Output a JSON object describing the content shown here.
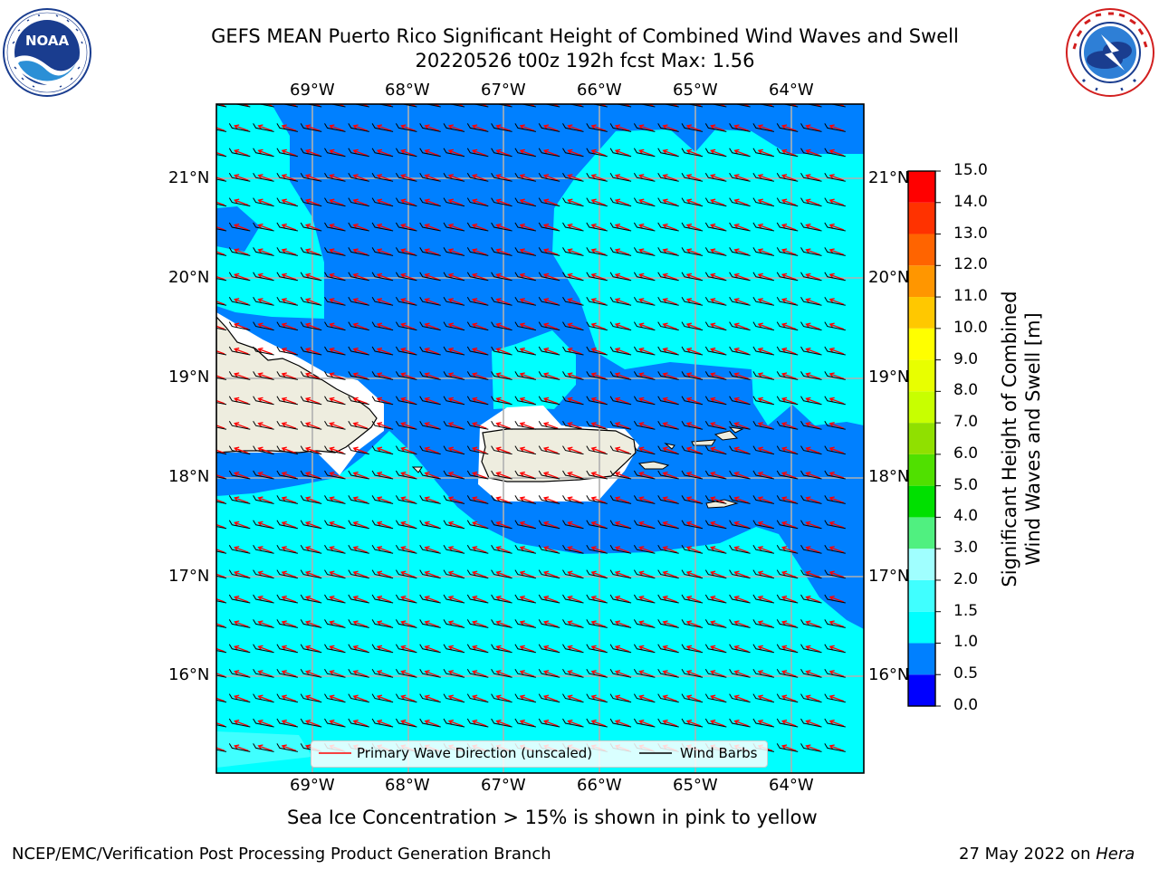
{
  "header": {
    "title_line1": "GEFS MEAN Puerto Rico Significant Height of Combined Wind Waves and Swell",
    "title_line2": "20220526 t00z 192h fcst   Max: 1.56"
  },
  "logos": {
    "left": {
      "icon": "noaa-logo-icon",
      "text": "NOAA",
      "ring_text": "NATIONAL OCEANIC AND ATMOSPHERIC ADMINISTRATION · U.S. DEPARTMENT OF COMMERCE"
    },
    "right": {
      "icon": "nws-logo-icon",
      "ring_text": "NATIONAL WEATHER SERVICE"
    }
  },
  "map": {
    "lon_ticks": [
      "69°W",
      "68°W",
      "67°W",
      "66°W",
      "65°W",
      "64°W"
    ],
    "lat_ticks": [
      "21°N",
      "20°N",
      "19°N",
      "18°N",
      "17°N",
      "16°N"
    ],
    "legend": {
      "wave_label": "Primary Wave Direction (unscaled)",
      "barb_label": "Wind Barbs",
      "wave_color": "#ff0000",
      "barb_color": "#000000"
    },
    "land_color": "#eeeddf",
    "ice_note": "Sea Ice Concentration > 15% is shown in pink to yellow"
  },
  "colorbar": {
    "title_line1": "Significant Height of Combined",
    "title_line2": "Wind Waves and Swell [m]",
    "ticks": [
      "0.0",
      "0.5",
      "1.0",
      "1.5",
      "2.0",
      "3.0",
      "4.0",
      "5.0",
      "6.0",
      "7.0",
      "8.0",
      "9.0",
      "10.0",
      "11.0",
      "12.0",
      "13.0",
      "14.0",
      "15.0"
    ],
    "colors": [
      "#0000ff",
      "#0080ff",
      "#00ffff",
      "#40ffff",
      "#a0ffff",
      "#50f080",
      "#00e000",
      "#50e000",
      "#90e000",
      "#c8ff00",
      "#e8ff00",
      "#ffff00",
      "#ffc800",
      "#ff9600",
      "#ff6400",
      "#ff3200",
      "#ff0000"
    ]
  },
  "footer": {
    "left": "NCEP/EMC/Verification Post Processing Product Generation Branch",
    "right_prefix": "27 May 2022 on ",
    "right_machine": "Hera"
  }
}
